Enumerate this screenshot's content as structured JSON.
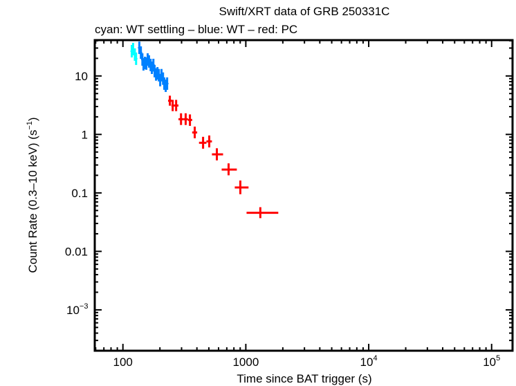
{
  "chart_data": {
    "type": "scatter",
    "title": "Swift/XRT data of GRB 250331C",
    "subtitle": "cyan: WT settling – blue: WT – red: PC",
    "xlabel": "Time since BAT trigger (s)",
    "ylabel": "Count Rate (0.3–10 keV) (s",
    "ylabel_sup": "−1",
    "ylabel_end": ")",
    "xscale": "log",
    "yscale": "log",
    "xlim": [
      59,
      148000
    ],
    "ylim": [
      0.0002,
      41
    ],
    "grid": false,
    "x_ticks": [
      {
        "value": 100,
        "label": "100",
        "sup": ""
      },
      {
        "value": 1000,
        "label": "1000",
        "sup": ""
      },
      {
        "value": 10000,
        "label": "10",
        "sup": "4"
      },
      {
        "value": 100000,
        "label": "10",
        "sup": "5"
      }
    ],
    "y_ticks": [
      {
        "value": 10,
        "label": "10",
        "sup": ""
      },
      {
        "value": 1,
        "label": "1",
        "sup": ""
      },
      {
        "value": 0.1,
        "label": "0.1",
        "sup": ""
      },
      {
        "value": 0.01,
        "label": "0.01",
        "sup": ""
      },
      {
        "value": 0.001,
        "label": "10",
        "sup": "−3"
      }
    ],
    "series": [
      {
        "color": "#00ffff",
        "points": [
          [
            118,
            26.5
          ],
          [
            121,
            28.8
          ],
          [
            125,
            23.2
          ],
          [
            128,
            19.7
          ]
        ]
      },
      {
        "color": "#0080ff",
        "points": [
          [
            136,
            30.3
          ],
          [
            140,
            25.1
          ],
          [
            144,
            19.1
          ],
          [
            147,
            15.8
          ],
          [
            151,
            16.7
          ],
          [
            155,
            16.3
          ],
          [
            159,
            19.1
          ],
          [
            163,
            17.7
          ],
          [
            168,
            15.4
          ],
          [
            172,
            13.8
          ],
          [
            177,
            15.4
          ],
          [
            181,
            12.1
          ],
          [
            186,
            10.6
          ],
          [
            191,
            11.1
          ],
          [
            196,
            10.3
          ],
          [
            201,
            8.5
          ],
          [
            206,
            10.3
          ],
          [
            212,
            9.0
          ],
          [
            217,
            7.4
          ],
          [
            223,
            6.8
          ],
          [
            229,
            7.4
          ]
        ]
      },
      {
        "color": "#ff0000",
        "points": [
          {
            "x": 241,
            "y": 3.77,
            "xlo": 233,
            "xhi": 250,
            "ylo": 3.1,
            "yhi": 4.6
          },
          {
            "x": 254,
            "y": 3.12,
            "xlo": 248,
            "xhi": 262,
            "ylo": 2.5,
            "yhi": 3.9
          },
          {
            "x": 271,
            "y": 3.12,
            "xlo": 262,
            "xhi": 283,
            "ylo": 2.5,
            "yhi": 3.9
          },
          {
            "x": 297,
            "y": 1.82,
            "xlo": 283,
            "xhi": 311,
            "ylo": 1.45,
            "yhi": 2.3
          },
          {
            "x": 324,
            "y": 1.82,
            "xlo": 311,
            "xhi": 338,
            "ylo": 1.45,
            "yhi": 2.3
          },
          {
            "x": 351,
            "y": 1.77,
            "xlo": 338,
            "xhi": 366,
            "ylo": 1.4,
            "yhi": 2.2
          },
          {
            "x": 384,
            "y": 1.08,
            "xlo": 366,
            "xhi": 402,
            "ylo": 0.86,
            "yhi": 1.36
          },
          {
            "x": 449,
            "y": 0.72,
            "xlo": 416,
            "xhi": 478,
            "ylo": 0.57,
            "yhi": 0.91
          },
          {
            "x": 504,
            "y": 0.76,
            "xlo": 478,
            "xhi": 530,
            "ylo": 0.6,
            "yhi": 0.96
          },
          {
            "x": 581,
            "y": 0.456,
            "xlo": 530,
            "xhi": 653,
            "ylo": 0.36,
            "yhi": 0.58
          },
          {
            "x": 724,
            "y": 0.251,
            "xlo": 636,
            "xhi": 845,
            "ylo": 0.2,
            "yhi": 0.32
          },
          {
            "x": 902,
            "y": 0.124,
            "xlo": 813,
            "xhi": 1052,
            "ylo": 0.095,
            "yhi": 0.163
          },
          {
            "x": 1312,
            "y": 0.0456,
            "xlo": 1014,
            "xhi": 1837,
            "ylo": 0.037,
            "yhi": 0.057
          }
        ]
      }
    ]
  }
}
